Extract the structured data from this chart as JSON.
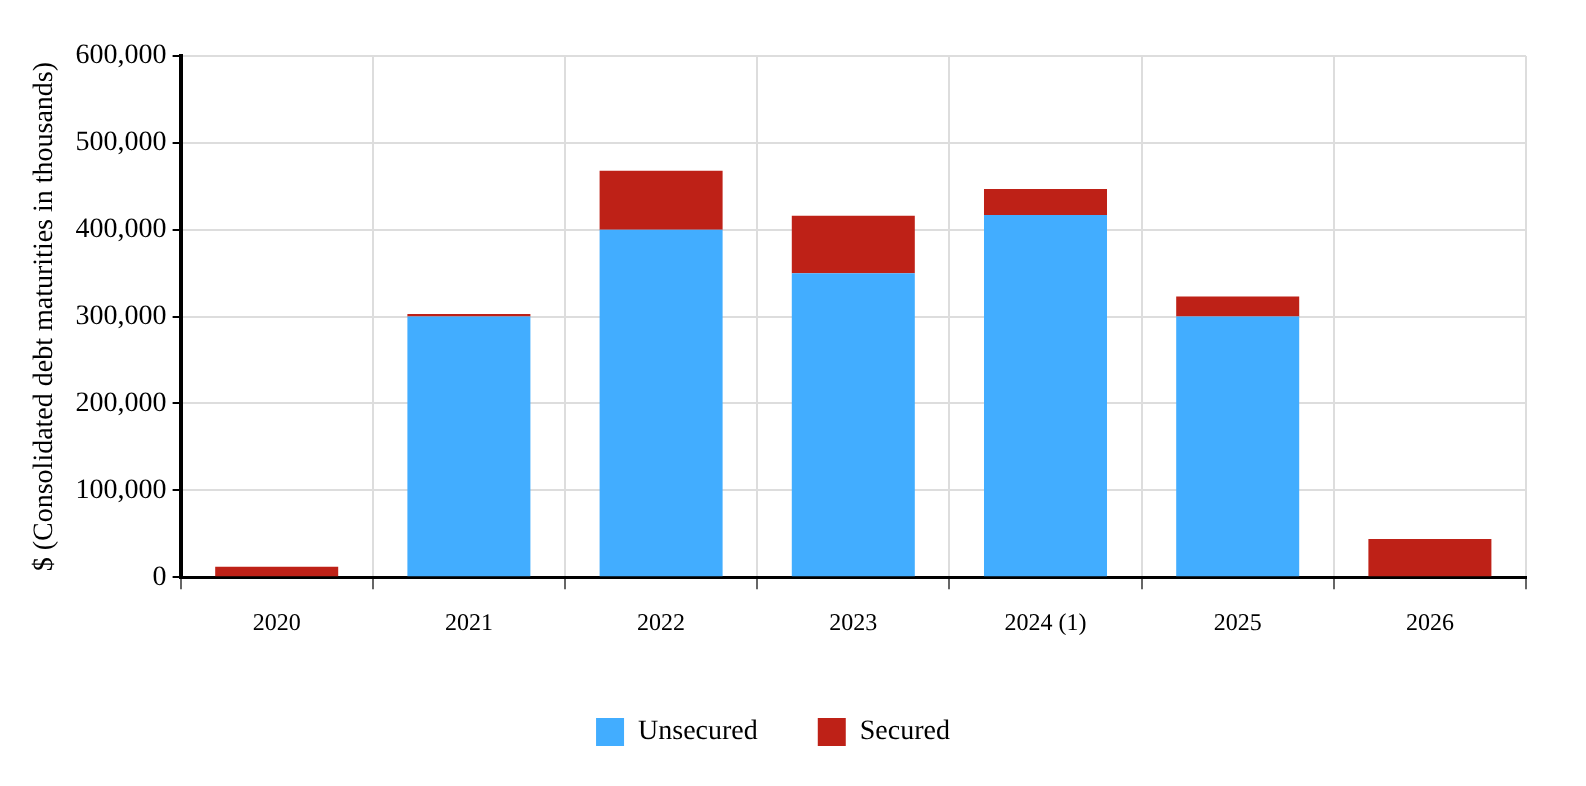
{
  "chart_data": {
    "type": "bar",
    "stacked": true,
    "ylabel": "$ (Consolidated debt maturities in thousands)",
    "categories": [
      "2020",
      "2021",
      "2022",
      "2023",
      "2024 (1)",
      "2025",
      "2026"
    ],
    "series": [
      {
        "name": "Unsecured",
        "color": "#42adff",
        "values": [
          0,
          300000,
          400000,
          350000,
          417000,
          300000,
          0
        ]
      },
      {
        "name": "Secured",
        "color": "#be2117",
        "values": [
          12000,
          3000,
          68000,
          66000,
          30000,
          23000,
          44000
        ]
      }
    ],
    "ylim": [
      0,
      600000
    ],
    "yticks": [
      0,
      {
        "value": 100000,
        "label": "100,000"
      },
      {
        "value": 200000,
        "label": "200,000"
      },
      {
        "value": 300000,
        "label": "300,000"
      },
      {
        "value": 400000,
        "label": "400,000"
      },
      {
        "value": 500000,
        "label": "500,000"
      },
      {
        "value": 600000,
        "label": "600,000"
      }
    ],
    "grid": true,
    "legend": "bottom"
  }
}
